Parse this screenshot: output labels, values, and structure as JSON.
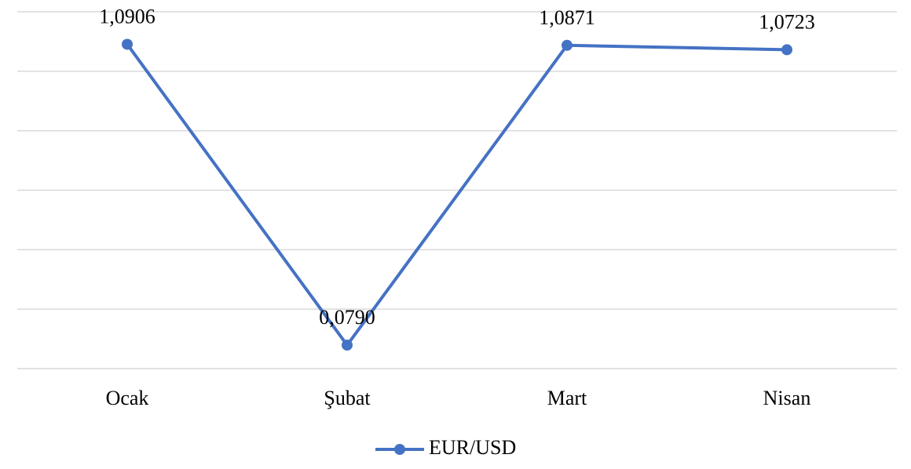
{
  "chart_data": {
    "type": "line",
    "categories": [
      "Ocak",
      "Şubat",
      "Mart",
      "Nisan"
    ],
    "series": [
      {
        "name": "EUR/USD",
        "color": "#4472c4",
        "values": [
          1.0906,
          0.079,
          1.0871,
          1.0723
        ],
        "value_labels": [
          "1,0906",
          "0,0790",
          "1,0871",
          "1,0723"
        ]
      }
    ],
    "ylim": [
      0,
      1.2
    ],
    "yticks": [
      0,
      0.2,
      0.4,
      0.6,
      0.8,
      1,
      1.2
    ],
    "grid": true,
    "legend": "bottom"
  }
}
